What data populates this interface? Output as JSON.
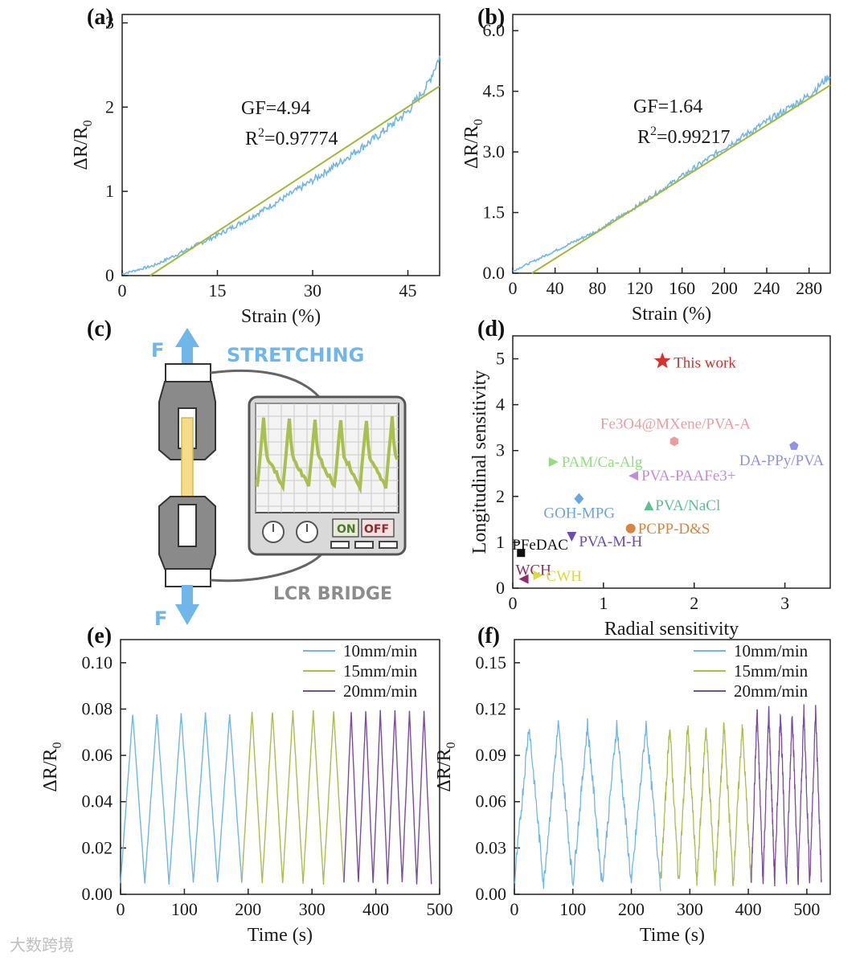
{
  "panel_labels": [
    "(a)",
    "(b)",
    "(c)",
    "(d)",
    "(e)",
    "(f)"
  ],
  "colors": {
    "blue": "#6fb6ea",
    "green": "#a9bf4e",
    "purple": "#7a4ba2",
    "fit": "#a6b83a",
    "star": "#d7312b"
  },
  "schematic": {
    "stretching": "STRETCHING",
    "force_top": "F",
    "force_bottom": "F",
    "bridge": "LCR BRIDGE",
    "on": "ON",
    "off": "OFF"
  },
  "watermark": "大数跨境",
  "chart_data": [
    {
      "id": "a",
      "type": "line",
      "xlabel": "Strain (%)",
      "ylabel": "ΔR/R0",
      "xlim": [
        0,
        50
      ],
      "ylim": [
        0,
        3.1
      ],
      "xticks": [
        0,
        15,
        30,
        45
      ],
      "yticks": [
        0,
        1,
        2,
        3
      ],
      "annotation": {
        "gf": "GF=4.94",
        "r2_label": "R",
        "r2_sup": "2",
        "r2_value": "=0.97774"
      },
      "series": [
        {
          "kind": "measured",
          "x": [
            0,
            5,
            10,
            15,
            20,
            25,
            30,
            35,
            40,
            45,
            48,
            50
          ],
          "y": [
            0.02,
            0.12,
            0.3,
            0.48,
            0.68,
            0.9,
            1.13,
            1.38,
            1.64,
            1.95,
            2.25,
            2.6
          ]
        },
        {
          "kind": "fit",
          "x": [
            4.4,
            50
          ],
          "y": [
            0,
            2.25
          ]
        }
      ]
    },
    {
      "id": "b",
      "type": "line",
      "xlabel": "Strain (%)",
      "ylabel": "ΔR/R0",
      "xlim": [
        0,
        300
      ],
      "ylim": [
        0,
        6.4
      ],
      "xticks": [
        0,
        40,
        80,
        120,
        160,
        200,
        240,
        280
      ],
      "yticks": [
        0.0,
        1.5,
        3.0,
        4.5,
        6.0
      ],
      "ytick_labels": [
        "0.0",
        "1.5",
        "3.0",
        "4.5",
        "6.0"
      ],
      "annotation": {
        "gf": "GF=1.64",
        "r2_label": "R",
        "r2_sup": "2",
        "r2_value": "=0.99217"
      },
      "series": [
        {
          "kind": "measured",
          "x": [
            0,
            20,
            50,
            80,
            120,
            160,
            200,
            240,
            280,
            300
          ],
          "y": [
            0.05,
            0.3,
            0.68,
            1.05,
            1.7,
            2.4,
            3.1,
            3.75,
            4.4,
            4.9
          ]
        },
        {
          "kind": "fit",
          "x": [
            18,
            300
          ],
          "y": [
            0,
            4.65
          ]
        }
      ]
    },
    {
      "id": "d",
      "type": "scatter",
      "xlabel": "Radial sensitivity",
      "ylabel": "Longitudinal sensitivity",
      "xlim": [
        0,
        3.5
      ],
      "ylim": [
        0,
        5.5
      ],
      "xticks": [
        0,
        1,
        2,
        3
      ],
      "yticks": [
        0,
        1,
        2,
        3,
        4,
        5
      ],
      "points": [
        {
          "label": "This work",
          "x": 1.65,
          "y": 4.95,
          "marker": "star",
          "color": "#d7312b"
        },
        {
          "label": "Fe3O4@MXene/PVA-A",
          "x": 1.78,
          "y": 3.2,
          "marker": "hexagon",
          "color": "#ec9d9d"
        },
        {
          "label": "DA-PPy/PVA",
          "x": 3.1,
          "y": 3.1,
          "marker": "pentagon",
          "color": "#8e93e6"
        },
        {
          "label": "PAM/Ca-Alg",
          "x": 0.45,
          "y": 2.75,
          "marker": "triangle-right",
          "color": "#8fe07c"
        },
        {
          "label": "PVA-PAAFe3+",
          "x": 1.33,
          "y": 2.45,
          "marker": "triangle-left",
          "color": "#c58be0"
        },
        {
          "label": "GOH-MPG",
          "x": 0.73,
          "y": 1.95,
          "marker": "diamond",
          "color": "#6da5e0"
        },
        {
          "label": "PVA/NaCl",
          "x": 1.5,
          "y": 1.8,
          "marker": "triangle-up",
          "color": "#5fbf93"
        },
        {
          "label": "PCPP-D&S",
          "x": 1.3,
          "y": 1.3,
          "marker": "circle",
          "color": "#d88540"
        },
        {
          "label": "PVA-M-H",
          "x": 0.65,
          "y": 1.12,
          "marker": "triangle-down",
          "color": "#6f49b8"
        },
        {
          "label": "PFeDAC",
          "x": 0.1,
          "y": 0.75,
          "marker": "square",
          "color": "#111111"
        },
        {
          "label": "WCH",
          "x": 0.12,
          "y": 0.2,
          "marker": "triangle-left",
          "color": "#8e2d6d"
        },
        {
          "label": "CWH",
          "x": 0.28,
          "y": 0.28,
          "marker": "triangle-right",
          "color": "#d7dc3e"
        }
      ]
    },
    {
      "id": "e",
      "type": "line",
      "xlabel": "Time (s)",
      "ylabel": "ΔR/R0",
      "xlim": [
        0,
        500
      ],
      "ylim": [
        0,
        0.11
      ],
      "xticks": [
        0,
        100,
        200,
        300,
        400,
        500
      ],
      "yticks": [
        0.0,
        0.02,
        0.04,
        0.06,
        0.08,
        0.1
      ],
      "ytick_labels": [
        "0.00",
        "0.02",
        "0.04",
        "0.06",
        "0.08",
        "0.10"
      ],
      "series": [
        {
          "name": "10mm/min",
          "color": "#6fb6ea",
          "t_start": 0,
          "t_end": 190,
          "peak": 0.078,
          "cycles": 5
        },
        {
          "name": "15mm/min",
          "color": "#a9bf4e",
          "t_start": 190,
          "t_end": 350,
          "peak": 0.079,
          "cycles": 5
        },
        {
          "name": "20mm/min",
          "color": "#7a4ba2",
          "t_start": 350,
          "t_end": 487,
          "peak": 0.079,
          "cycles": 6
        }
      ]
    },
    {
      "id": "f",
      "type": "line",
      "xlabel": "Time (s)",
      "ylabel": "ΔR/R0",
      "xlim": [
        0,
        540
      ],
      "ylim": [
        0,
        0.165
      ],
      "xticks": [
        0,
        100,
        200,
        300,
        400,
        500
      ],
      "yticks": [
        0.0,
        0.03,
        0.06,
        0.09,
        0.12,
        0.15
      ],
      "ytick_labels": [
        "0.00",
        "0.03",
        "0.06",
        "0.09",
        "0.12",
        "0.15"
      ],
      "series": [
        {
          "name": "10mm/min",
          "color": "#6fb6ea",
          "t_start": 0,
          "t_end": 250,
          "peak": 0.11,
          "cycles": 5
        },
        {
          "name": "15mm/min",
          "color": "#a9bf4e",
          "t_start": 250,
          "t_end": 405,
          "peak": 0.11,
          "cycles": 5
        },
        {
          "name": "20mm/min",
          "color": "#7a4ba2",
          "t_start": 405,
          "t_end": 525,
          "peak": 0.12,
          "cycles": 6
        }
      ]
    }
  ]
}
